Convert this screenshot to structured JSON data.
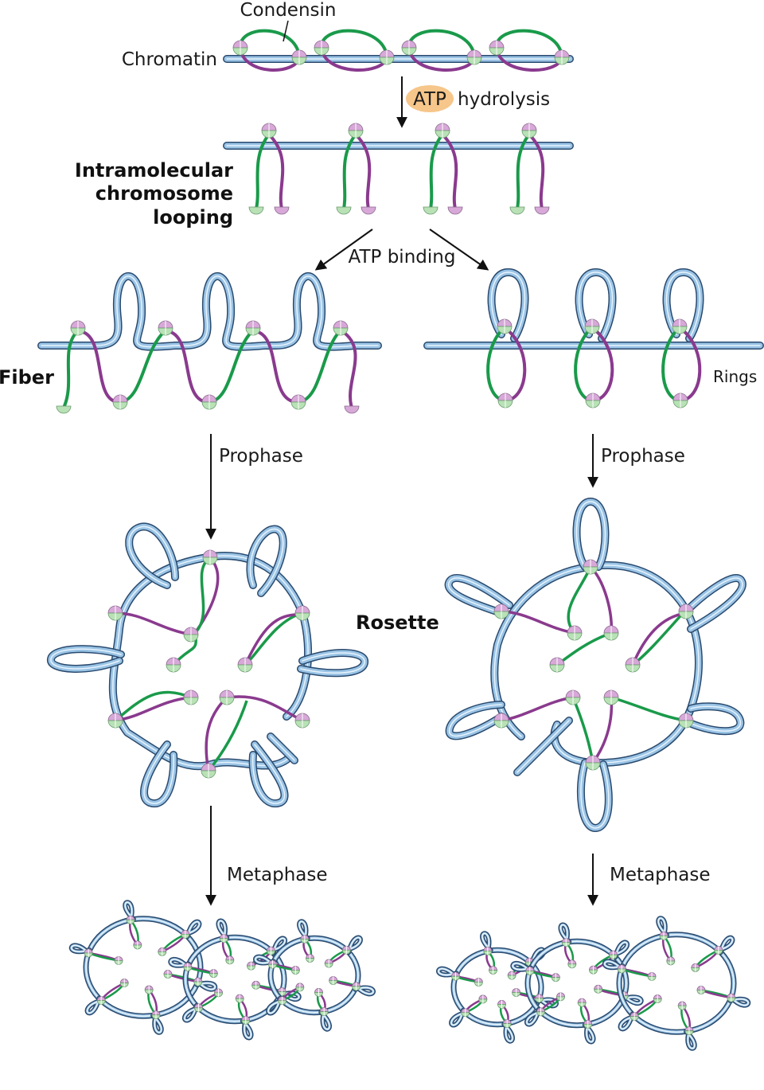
{
  "labels": {
    "condensin": "Condensin",
    "chromatin": "Chromatin",
    "atp": "ATP",
    "hydrolysis": "hydrolysis",
    "intramolecular_line1": "Intramolecular",
    "intramolecular_line2": "chromosome",
    "intramolecular_line3": "looping",
    "atp_binding": "ATP binding",
    "fiber": "Fiber",
    "rings": "Rings",
    "prophase_left": "Prophase",
    "prophase_right": "Prophase",
    "rosette": "Rosette",
    "metaphase_left": "Metaphase",
    "metaphase_right": "Metaphase"
  },
  "colors": {
    "chromatin_outline": "#2a4a6e",
    "chromatin_fill": "#9ac4e6",
    "chromatin_highlight": "#e8f3fb",
    "green_arm": "#1a9a4a",
    "purple_arm": "#8a3a8e",
    "green_head": "#b8e2b6",
    "purple_head": "#d7a8d8",
    "atp_badge": "#f6c68a"
  }
}
